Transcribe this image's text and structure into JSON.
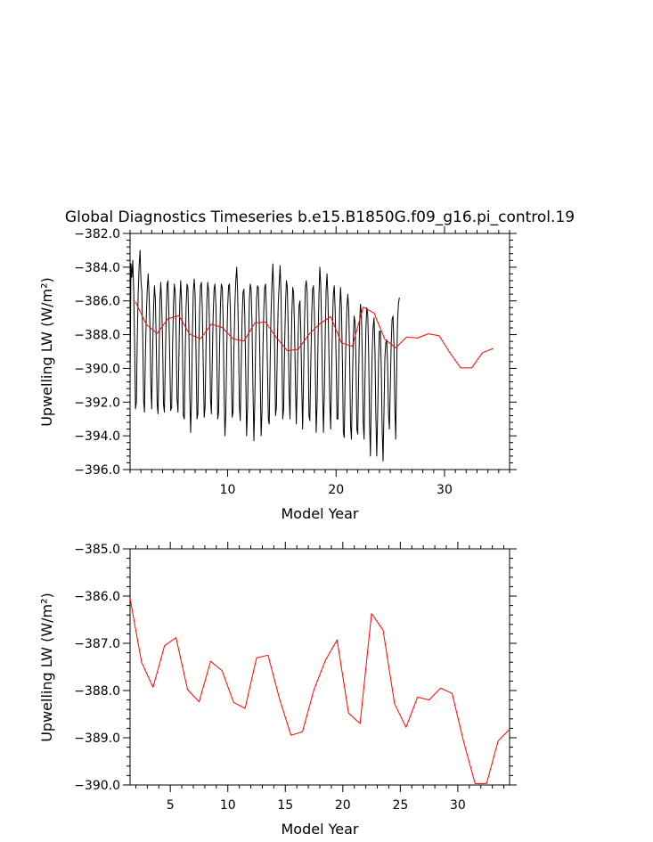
{
  "chart_data": [
    {
      "type": "line",
      "title": "Global Diagnostics Timeseries b.e15.B1850G.f09_g16.pi_control.19",
      "xlabel": "Model Year",
      "ylabel": "Upwelling LW (W/m²)",
      "xlim": [
        1,
        36
      ],
      "ylim": [
        -396.0,
        -382.0
      ],
      "x_ticks": [
        10,
        20,
        30
      ],
      "y_ticks": [
        -396.0,
        -394.0,
        -392.0,
        -390.0,
        -388.0,
        -386.0,
        -384.0,
        -382.0
      ],
      "y_tick_labels": [
        "−396.0",
        "−394.0",
        "−392.0",
        "−390.0",
        "−388.0",
        "−386.0",
        "−384.0",
        "−382.0"
      ],
      "series": [
        {
          "color": "#000000",
          "type": "monthly",
          "x_start": 1.0,
          "x_step": 0.0833333,
          "values": [
            -391.0,
            -383.8,
            -384.6,
            -383.6,
            -385.4,
            -388.5,
            -392.4,
            -392.0,
            -388.2,
            -385.6,
            -384.0,
            -383.0,
            -384.8,
            -385.4,
            -388.0,
            -391.9,
            -392.6,
            -389.2,
            -386.8,
            -385.3,
            -384.4,
            -385.6,
            -387.5,
            -391.0,
            -392.4,
            -388.8,
            -386.4,
            -385.1,
            -385.9,
            -388.5,
            -392.1,
            -392.7,
            -389.4,
            -386.0,
            -384.9,
            -386.2,
            -388.3,
            -392.1,
            -392.6,
            -389.6,
            -386.7,
            -385.0,
            -384.8,
            -386.8,
            -389.5,
            -392.5,
            -392.3,
            -388.7,
            -386.2,
            -385.0,
            -385.5,
            -388.0,
            -391.8,
            -392.6,
            -389.4,
            -386.1,
            -384.8,
            -386.0,
            -388.6,
            -392.8,
            -393.0,
            -389.2,
            -386.4,
            -385.0,
            -385.2,
            -387.4,
            -391.2,
            -393.8,
            -391.9,
            -388.0,
            -385.4,
            -384.7,
            -385.6,
            -389.0,
            -393.0,
            -392.7,
            -389.2,
            -386.4,
            -385.1,
            -384.9,
            -386.5,
            -389.9,
            -392.9,
            -392.3,
            -388.9,
            -386.0,
            -384.9,
            -385.4,
            -387.7,
            -391.8,
            -392.7,
            -389.5,
            -386.8,
            -385.3,
            -385.0,
            -386.3,
            -389.3,
            -393.0,
            -392.6,
            -389.0,
            -386.3,
            -385.0,
            -385.2,
            -387.2,
            -391.3,
            -394.0,
            -392.6,
            -389.0,
            -386.4,
            -385.1,
            -385.0,
            -386.6,
            -389.7,
            -392.9,
            -392.6,
            -388.8,
            -386.2,
            -384.8,
            -384.0,
            -385.4,
            -388.2,
            -392.2,
            -393.1,
            -389.8,
            -387.0,
            -385.5,
            -385.3,
            -386.9,
            -390.1,
            -394.0,
            -392.4,
            -388.8,
            -386.0,
            -385.0,
            -385.3,
            -387.4,
            -391.0,
            -394.3,
            -392.0,
            -388.4,
            -385.9,
            -385.1,
            -385.2,
            -387.2,
            -390.6,
            -394.0,
            -392.6,
            -389.0,
            -386.5,
            -385.2,
            -385.0,
            -386.9,
            -389.9,
            -393.0,
            -393.3,
            -389.8,
            -386.8,
            -385.1,
            -383.8,
            -385.6,
            -389.0,
            -392.8,
            -392.3,
            -388.8,
            -386.2,
            -385.0,
            -383.9,
            -385.5,
            -388.8,
            -393.0,
            -392.4,
            -388.9,
            -386.2,
            -384.8,
            -385.2,
            -387.6,
            -391.4,
            -393.0,
            -389.9,
            -386.8,
            -385.2,
            -385.5,
            -387.6,
            -390.9,
            -393.3,
            -391.0,
            -388.0,
            -386.3,
            -386.0,
            -387.8,
            -391.0,
            -393.6,
            -390.8,
            -387.2,
            -385.2,
            -384.8,
            -385.5,
            -388.4,
            -392.8,
            -393.1,
            -389.7,
            -386.8,
            -385.3,
            -385.1,
            -386.7,
            -389.7,
            -393.8,
            -392.0,
            -388.3,
            -385.8,
            -384.0,
            -385.0,
            -387.5,
            -391.0,
            -393.8,
            -391.5,
            -388.0,
            -385.3,
            -384.4,
            -385.8,
            -388.8,
            -392.0,
            -393.6,
            -390.4,
            -387.4,
            -385.6,
            -385.1,
            -386.5,
            -389.4,
            -393.0,
            -393.0,
            -389.5,
            -386.5,
            -385.2,
            -386.4,
            -389.7,
            -393.8,
            -394.1,
            -390.7,
            -388.1,
            -386.4,
            -385.6,
            -386.5,
            -389.4,
            -393.4,
            -394.2,
            -391.2,
            -388.4,
            -386.9,
            -387.3,
            -389.7,
            -393.6,
            -393.9,
            -390.4,
            -387.5,
            -386.2,
            -386.8,
            -389.4,
            -393.2,
            -394.2,
            -390.7,
            -387.7,
            -386.4,
            -386.8,
            -389.1,
            -393.2,
            -395.2,
            -391.7,
            -389.0,
            -387.6,
            -387.0,
            -389.0,
            -392.8,
            -395.2,
            -392.8,
            -389.6,
            -387.8,
            -387.8,
            -390.0,
            -393.7,
            -395.5,
            -392.6,
            -389.4,
            -388.5,
            -388.3,
            -389.8,
            -392.7,
            -393.6,
            -391.2,
            -388.6,
            -387.1,
            -386.9,
            -388.6,
            -392.3,
            -394.2,
            -390.2,
            -387.3,
            -386.2,
            -385.8
          ]
        },
        {
          "color": "#ff0000",
          "type": "annual",
          "x": [
            1.5,
            2.5,
            3.5,
            4.5,
            5.5,
            6.5,
            7.5,
            8.5,
            9.5,
            10.5,
            11.5,
            12.5,
            13.5,
            14.5,
            15.5,
            16.5,
            17.5,
            18.5,
            19.5,
            20.5,
            21.5,
            22.5,
            23.5,
            24.5,
            25.5,
            26.5,
            27.5,
            28.5,
            29.5,
            30.5,
            31.5,
            32.5,
            33.5,
            34.5
          ],
          "values": [
            -386.05,
            -387.4,
            -387.93,
            -387.05,
            -386.88,
            -387.98,
            -388.24,
            -387.38,
            -387.58,
            -388.25,
            -388.38,
            -387.31,
            -387.25,
            -388.18,
            -388.95,
            -388.87,
            -387.98,
            -387.35,
            -386.93,
            -388.48,
            -388.7,
            -386.37,
            -386.72,
            -388.28,
            -388.78,
            -388.14,
            -388.2,
            -387.95,
            -388.06,
            -389.08,
            -389.97,
            -389.97,
            -389.07,
            -388.82
          ]
        }
      ]
    },
    {
      "type": "line",
      "title": "",
      "xlabel": "Model Year",
      "ylabel": "Upwelling LW (W/m²)",
      "xlim": [
        1.5,
        34.5
      ],
      "ylim": [
        -390.0,
        -385.0
      ],
      "x_ticks": [
        5,
        10,
        15,
        20,
        25,
        30
      ],
      "y_ticks": [
        -390.0,
        -389.0,
        -388.0,
        -387.0,
        -386.0,
        -385.0
      ],
      "y_tick_labels": [
        "−390.0",
        "−389.0",
        "−388.0",
        "−387.0",
        "−386.0",
        "−385.0"
      ],
      "series": [
        {
          "color": "#ff0000",
          "type": "annual",
          "x": [
            1.5,
            2.5,
            3.5,
            4.5,
            5.5,
            6.5,
            7.5,
            8.5,
            9.5,
            10.5,
            11.5,
            12.5,
            13.5,
            14.5,
            15.5,
            16.5,
            17.5,
            18.5,
            19.5,
            20.5,
            21.5,
            22.5,
            23.5,
            24.5,
            25.5,
            26.5,
            27.5,
            28.5,
            29.5,
            30.5,
            31.5,
            32.5,
            33.5,
            34.5
          ],
          "values": [
            -386.05,
            -387.4,
            -387.93,
            -387.05,
            -386.88,
            -387.98,
            -388.24,
            -387.38,
            -387.58,
            -388.25,
            -388.38,
            -387.31,
            -387.25,
            -388.18,
            -388.95,
            -388.87,
            -387.98,
            -387.35,
            -386.93,
            -388.48,
            -388.7,
            -386.37,
            -386.72,
            -388.28,
            -388.78,
            -388.14,
            -388.2,
            -387.95,
            -388.06,
            -389.08,
            -389.97,
            -389.97,
            -389.07,
            -388.82
          ]
        }
      ]
    }
  ]
}
